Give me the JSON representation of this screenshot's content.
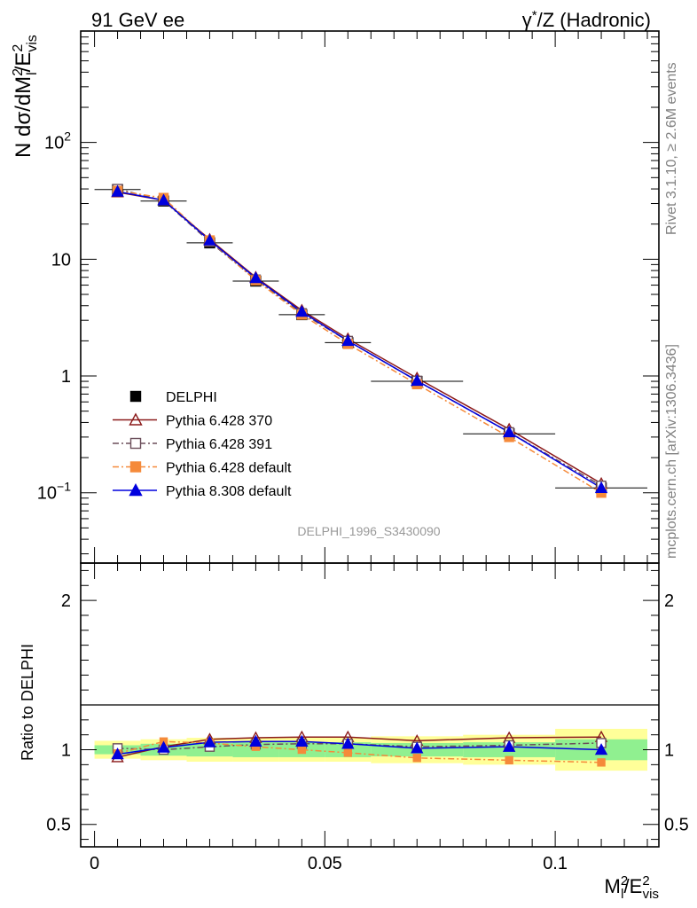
{
  "header": {
    "left_title": "91 GeV ee",
    "right_title_prefix": "γ",
    "right_title_sup": "*",
    "right_title_suffix": "/Z (Hadronic)"
  },
  "side_notes": {
    "rivet": "Rivet 3.1.10, ≥ 2.6M events",
    "mcplots": "mcplots.cern.ch [arXiv:1306.3436]"
  },
  "watermark": "DELPHI_1996_S3430090",
  "axis_labels": {
    "y_main": {
      "pre": "N dσ/dM",
      "sup1": "2",
      "sub1": "l",
      "mid": "/E",
      "sup2": "2",
      "sub2": "vis"
    },
    "y_ratio": "Ratio to DELPHI",
    "x": {
      "pre": "M",
      "sup1": "2",
      "sub1": "l",
      "mid": "/E",
      "sup2": "2",
      "sub2": "vis"
    }
  },
  "chart_data": [
    {
      "type": "line",
      "panel": "main",
      "y_scale": "log",
      "ylim": [
        0.025,
        900
      ],
      "xlim": [
        -0.003,
        0.1225
      ],
      "y_tick_labels": [
        {
          "value": 0.1,
          "mantissa": "10",
          "exponent": "−1"
        },
        {
          "value": 1,
          "text": "1"
        },
        {
          "value": 10,
          "text": "10"
        },
        {
          "value": 100,
          "mantissa": "10",
          "exponent": "2"
        }
      ],
      "legend_position": "middle-left",
      "series": [
        {
          "name": "DELPHI",
          "color": "#000000",
          "marker": "filled-square",
          "line": "none",
          "x": [
            0.005,
            0.015,
            0.025,
            0.035,
            0.045,
            0.055,
            0.07,
            0.09,
            0.11
          ],
          "y": [
            39.5,
            31.5,
            13.8,
            6.5,
            3.35,
            1.93,
            0.9,
            0.32,
            0.11
          ],
          "err_x": [
            0.005,
            0.005,
            0.005,
            0.005,
            0.005,
            0.005,
            0.01,
            0.01,
            0.01
          ]
        },
        {
          "name": "Pythia 6.428 370",
          "color": "#8b1a1a",
          "marker": "open-triangle",
          "line": "solid",
          "x": [
            0.005,
            0.015,
            0.025,
            0.035,
            0.045,
            0.055,
            0.07,
            0.09,
            0.11
          ],
          "y": [
            37.5,
            32.0,
            14.8,
            7.0,
            3.65,
            2.08,
            0.96,
            0.35,
            0.12
          ]
        },
        {
          "name": "Pythia 6.428 391",
          "color": "#6b4e5a",
          "marker": "open-square",
          "line": "dashdot",
          "x": [
            0.005,
            0.015,
            0.025,
            0.035,
            0.045,
            0.055,
            0.07,
            0.09,
            0.11
          ],
          "y": [
            40.0,
            31.8,
            14.1,
            6.7,
            3.45,
            2.0,
            0.91,
            0.33,
            0.115
          ]
        },
        {
          "name": "Pythia 6.428 default",
          "color": "#f58a3a",
          "marker": "filled-square",
          "line": "dashdot",
          "x": [
            0.005,
            0.015,
            0.025,
            0.035,
            0.045,
            0.055,
            0.07,
            0.09,
            0.11
          ],
          "y": [
            38.5,
            33.5,
            14.5,
            6.6,
            3.35,
            1.88,
            0.85,
            0.3,
            0.1
          ]
        },
        {
          "name": "Pythia 8.308 default",
          "color": "#0000dd",
          "marker": "filled-triangle",
          "line": "solid",
          "x": [
            0.005,
            0.015,
            0.025,
            0.035,
            0.045,
            0.055,
            0.07,
            0.09,
            0.11
          ],
          "y": [
            38.0,
            32.0,
            14.5,
            6.9,
            3.55,
            2.0,
            0.91,
            0.33,
            0.11
          ]
        }
      ]
    },
    {
      "type": "line",
      "panel": "ratio",
      "y_scale": "linear",
      "ylim": [
        0.35,
        2.25
      ],
      "xlim": [
        -0.003,
        0.1225
      ],
      "y_tick_labels": [
        "0.5",
        "1",
        "2"
      ],
      "x_tick_labels": [
        "0",
        "0.05",
        "0.1"
      ],
      "bands": {
        "bin_edges": [
          0.0,
          0.01,
          0.02,
          0.03,
          0.04,
          0.05,
          0.06,
          0.08,
          0.1,
          0.12
        ],
        "inner_color": "#90f090",
        "outer_color": "#ffff99",
        "inner": [
          [
            0.97,
            1.03
          ],
          [
            0.96,
            1.04
          ],
          [
            0.955,
            1.045
          ],
          [
            0.95,
            1.05
          ],
          [
            0.95,
            1.05
          ],
          [
            0.95,
            1.05
          ],
          [
            0.955,
            1.045
          ],
          [
            0.95,
            1.05
          ],
          [
            0.93,
            1.07
          ]
        ],
        "outer": [
          [
            0.94,
            1.06
          ],
          [
            0.93,
            1.07
          ],
          [
            0.92,
            1.08
          ],
          [
            0.92,
            1.08
          ],
          [
            0.92,
            1.08
          ],
          [
            0.92,
            1.08
          ],
          [
            0.91,
            1.09
          ],
          [
            0.9,
            1.1
          ],
          [
            0.86,
            1.14
          ]
        ]
      },
      "series": [
        {
          "name": "Pythia 6.428 370",
          "color": "#8b1a1a",
          "marker": "open-triangle",
          "line": "solid",
          "x": [
            0.005,
            0.015,
            0.025,
            0.035,
            0.045,
            0.055,
            0.07,
            0.09,
            0.11
          ],
          "y": [
            0.95,
            1.02,
            1.07,
            1.08,
            1.085,
            1.085,
            1.06,
            1.08,
            1.085
          ]
        },
        {
          "name": "Pythia 6.428 391",
          "color": "#6b4e5a",
          "marker": "open-square",
          "line": "dashdot",
          "x": [
            0.005,
            0.015,
            0.025,
            0.035,
            0.045,
            0.055,
            0.07,
            0.09,
            0.11
          ],
          "y": [
            1.01,
            1.0,
            1.02,
            1.035,
            1.04,
            1.04,
            1.02,
            1.03,
            1.045
          ]
        },
        {
          "name": "Pythia 6.428 default",
          "color": "#f58a3a",
          "marker": "filled-square",
          "line": "dashdot",
          "x": [
            0.005,
            0.015,
            0.025,
            0.035,
            0.045,
            0.055,
            0.07,
            0.09,
            0.11
          ],
          "y": [
            0.975,
            1.055,
            1.045,
            1.02,
            1.0,
            0.98,
            0.945,
            0.93,
            0.915
          ]
        },
        {
          "name": "Pythia 8.308 default",
          "color": "#0000dd",
          "marker": "filled-triangle",
          "line": "solid",
          "x": [
            0.005,
            0.015,
            0.025,
            0.035,
            0.045,
            0.055,
            0.07,
            0.09,
            0.11
          ],
          "y": [
            0.97,
            1.015,
            1.05,
            1.055,
            1.055,
            1.04,
            1.01,
            1.02,
            1.0
          ]
        }
      ]
    }
  ]
}
